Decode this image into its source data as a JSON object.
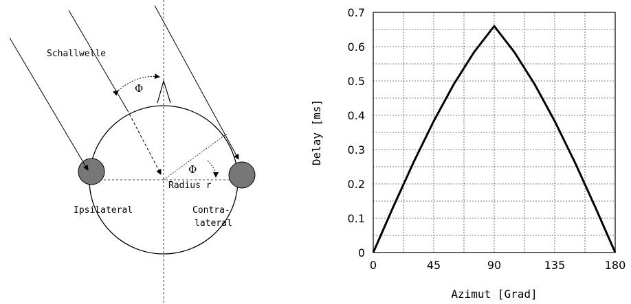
{
  "diagram": {
    "wave_label": "Schallwelle",
    "angle_top": "Φ",
    "angle_inner": "Φ",
    "radius_label": "Radius r",
    "ipsi_label": "Ipsilateral",
    "contra_label_1": "Contra-",
    "contra_label_2": "lateral"
  },
  "chart_data": {
    "type": "line",
    "x_label": "Azimut [Grad]",
    "y_label": "Delay [ms]",
    "x": [
      0,
      15,
      30,
      45,
      60,
      75,
      90,
      105,
      120,
      135,
      150,
      165,
      180
    ],
    "values": [
      0,
      0.134,
      0.263,
      0.383,
      0.491,
      0.584,
      0.66,
      0.584,
      0.491,
      0.383,
      0.263,
      0.134,
      0
    ],
    "color": "#000000",
    "xlim": [
      0,
      180
    ],
    "xticks": [
      0,
      45,
      90,
      135,
      180
    ],
    "ylim": [
      0,
      0.7
    ],
    "yticks": [
      0,
      0.1,
      0.2,
      0.3,
      0.4,
      0.5,
      0.6,
      0.7
    ],
    "grid": true
  }
}
